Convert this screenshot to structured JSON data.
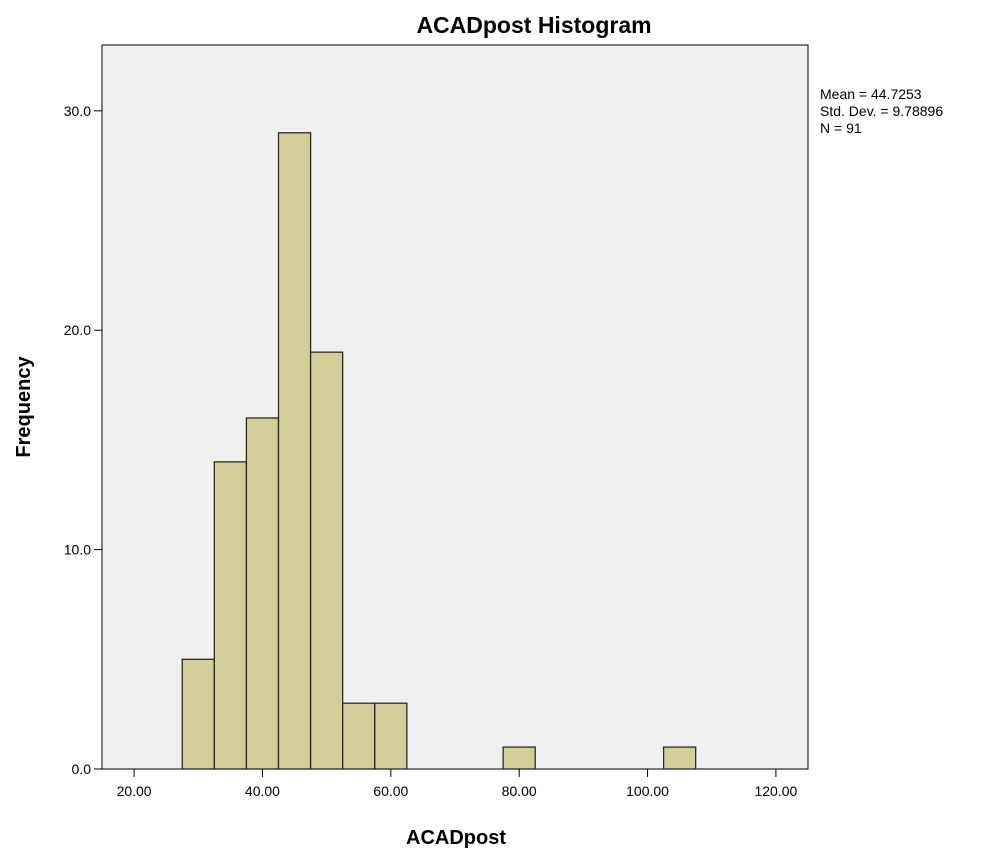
{
  "chart_data": {
    "type": "bar",
    "title": "ACADpost Histogram",
    "xlabel": "ACADpost",
    "ylabel": "Frequency",
    "xlim": [
      15,
      125
    ],
    "ylim": [
      0,
      33
    ],
    "bin_width": 5,
    "bins": [
      {
        "start": 27.5,
        "end": 32.5,
        "count": 5
      },
      {
        "start": 32.5,
        "end": 37.5,
        "count": 14
      },
      {
        "start": 37.5,
        "end": 42.5,
        "count": 16
      },
      {
        "start": 42.5,
        "end": 47.5,
        "count": 29
      },
      {
        "start": 47.5,
        "end": 52.5,
        "count": 19
      },
      {
        "start": 52.5,
        "end": 57.5,
        "count": 3
      },
      {
        "start": 57.5,
        "end": 62.5,
        "count": 3
      },
      {
        "start": 77.5,
        "end": 82.5,
        "count": 1
      },
      {
        "start": 102.5,
        "end": 107.5,
        "count": 1
      }
    ],
    "x_ticks": [
      20,
      40,
      60,
      80,
      100,
      120
    ],
    "x_tick_labels": [
      "20.00",
      "40.00",
      "60.00",
      "80.00",
      "100.00",
      "120.00"
    ],
    "y_ticks": [
      0,
      10,
      20,
      30
    ],
    "y_tick_labels": [
      "0.0",
      "10.0",
      "20.0",
      "30.0"
    ],
    "stats": {
      "mean": "Mean = 44.7253",
      "std": "Std. Dev. = 9.78896",
      "n": "N = 91"
    },
    "legend_placement": "right",
    "grid": false,
    "colors": {
      "plot_background": "#f0f0f0",
      "bar_fill": "#d3ce97",
      "bar_stroke": "#2a2a2a",
      "axis": "#000000"
    }
  }
}
